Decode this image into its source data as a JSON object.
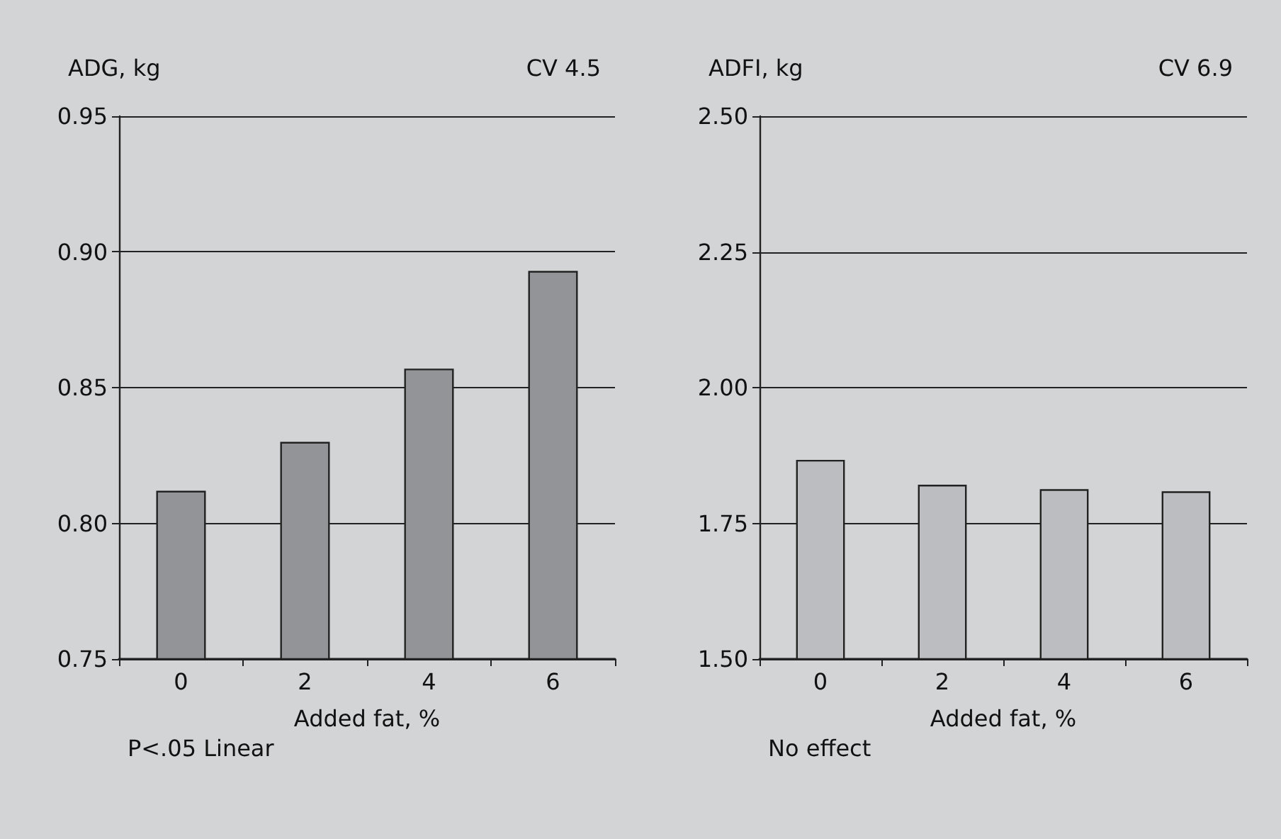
{
  "chart_data": [
    {
      "type": "bar",
      "ylabel": "ADG, kg",
      "xlabel": "Added fat, %",
      "categories": [
        "0",
        "2",
        "4",
        "6"
      ],
      "values": [
        0.812,
        0.83,
        0.857,
        0.893
      ],
      "color": "#939497",
      "ylim": [
        0.75,
        0.95
      ],
      "yticks": [
        {
          "value": 0.75,
          "label": "0.75"
        },
        {
          "value": 0.8,
          "label": "0.80"
        },
        {
          "value": 0.85,
          "label": "0.85"
        },
        {
          "value": 0.9,
          "label": "0.90"
        },
        {
          "value": 0.95,
          "label": "0.95"
        }
      ],
      "grid": "y",
      "annotations": [
        "CV 4.5",
        "P<.05 Linear"
      ]
    },
    {
      "type": "bar",
      "ylabel": "ADFI, kg",
      "xlabel": "Added fat, %",
      "categories": [
        "0",
        "2",
        "4",
        "6"
      ],
      "values": [
        1.867,
        1.821,
        1.813,
        1.809
      ],
      "color": "#bcbdc0",
      "ylim": [
        1.5,
        2.5
      ],
      "yticks": [
        {
          "value": 1.5,
          "label": "1.50"
        },
        {
          "value": 1.75,
          "label": "1.75"
        },
        {
          "value": 2.0,
          "label": "2.00"
        },
        {
          "value": 2.25,
          "label": "2.25"
        },
        {
          "value": 2.5,
          "label": "2.50"
        }
      ],
      "grid": "y",
      "annotations": [
        "CV 6.9",
        "No effect"
      ]
    }
  ]
}
